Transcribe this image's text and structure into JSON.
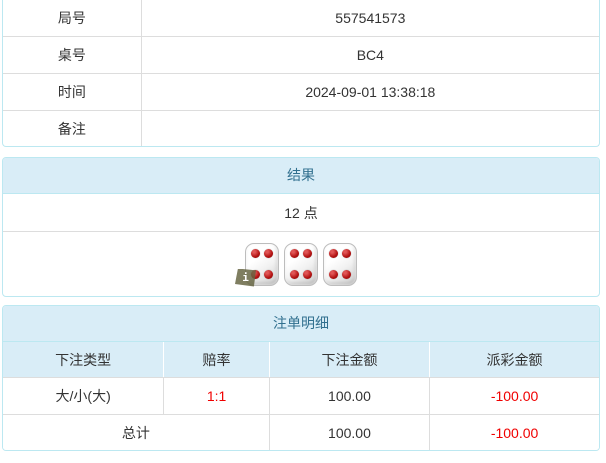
{
  "info_table": {
    "rows": [
      {
        "label": "局号",
        "value": "557541573"
      },
      {
        "label": "桌号",
        "value": "BC4"
      },
      {
        "label": "时间",
        "value": "2024-09-01 13:38:18"
      },
      {
        "label": "备注",
        "value": ""
      }
    ]
  },
  "result_panel": {
    "title": "结果",
    "points_text": "12 点",
    "dice": [
      4,
      4,
      4
    ],
    "badge": "i"
  },
  "bets_panel": {
    "title": "注单明细",
    "columns": [
      "下注类型",
      "赔率",
      "下注金额",
      "派彩金额"
    ],
    "rows": [
      {
        "type": "大/小(大)",
        "odds": "1:1",
        "amount": "100.00",
        "payout": "-100.00"
      }
    ],
    "total_label": "总计",
    "total_amount": "100.00",
    "total_payout": "-100.00"
  },
  "colors": {
    "panel_border": "#bce8f1",
    "panel_header_bg": "#d9edf7",
    "panel_header_text": "#31708f",
    "row_border": "#dddddd",
    "body_text": "#333333",
    "negative_text": "#f00000",
    "dice_pip": "#b31212",
    "badge_bg": "#63613e"
  }
}
